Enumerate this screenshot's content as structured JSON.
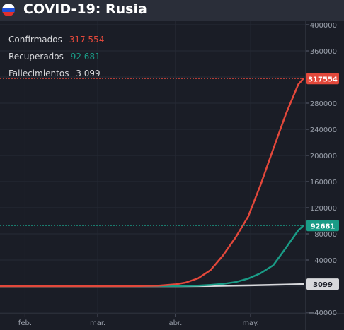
{
  "header": {
    "title": "COVID-19: Rusia",
    "flag_icon": "russia-flag-icon"
  },
  "legend": [
    {
      "label": "Confirmados",
      "value": "317 554",
      "color": "#e3483b"
    },
    {
      "label": "Recuperados",
      "value": "92 681",
      "color": "#1a9b86"
    },
    {
      "label": "Fallecimientos",
      "value": "3 099",
      "color": "#d8d9dc"
    }
  ],
  "colors": {
    "background": "#1a1d26",
    "grid": "#262a35",
    "axis_text": "#9aa0ab",
    "confirmed": "#e3483b",
    "recovered": "#1a9b86",
    "deaths": "#d8d9dc"
  },
  "chart_data": {
    "type": "line",
    "title": "COVID-19: Rusia",
    "xlabel": "",
    "ylabel": "",
    "grid": true,
    "legend_position": "top-left",
    "x_tick_labels": [
      "feb.",
      "mar.",
      "abr.",
      "may."
    ],
    "x_tick_dates": [
      "2020-02-01",
      "2020-03-01",
      "2020-04-01",
      "2020-05-01"
    ],
    "xlim": [
      "2020-01-22",
      "2020-05-23"
    ],
    "ylim": [
      -40000,
      400000
    ],
    "y_ticks": [
      -40000,
      0,
      40000,
      80000,
      120000,
      160000,
      200000,
      240000,
      280000,
      320000,
      360000,
      400000
    ],
    "y_tick_labels": [
      "−40000",
      "0",
      "40000",
      "80000",
      "120000",
      "160000",
      "200000",
      "240000",
      "280000",
      "320000",
      "360000",
      "400000"
    ],
    "series": [
      {
        "name": "Confirmados",
        "color": "#e3483b",
        "last_value_label": "317554",
        "points": [
          [
            "2020-01-22",
            0
          ],
          [
            "2020-03-01",
            0
          ],
          [
            "2020-03-15",
            60
          ],
          [
            "2020-03-25",
            658
          ],
          [
            "2020-04-01",
            2777
          ],
          [
            "2020-04-05",
            5389
          ],
          [
            "2020-04-10",
            11917
          ],
          [
            "2020-04-15",
            24490
          ],
          [
            "2020-04-20",
            47121
          ],
          [
            "2020-04-25",
            74588
          ],
          [
            "2020-04-30",
            106498
          ],
          [
            "2020-05-05",
            155370
          ],
          [
            "2020-05-10",
            209688
          ],
          [
            "2020-05-15",
            262843
          ],
          [
            "2020-05-20",
            308705
          ],
          [
            "2020-05-22",
            317554
          ]
        ]
      },
      {
        "name": "Recuperados",
        "color": "#1a9b86",
        "last_value_label": "92681",
        "points": [
          [
            "2020-01-22",
            0
          ],
          [
            "2020-04-01",
            190
          ],
          [
            "2020-04-10",
            795
          ],
          [
            "2020-04-15",
            1986
          ],
          [
            "2020-04-20",
            3446
          ],
          [
            "2020-04-25",
            6217
          ],
          [
            "2020-04-30",
            11619
          ],
          [
            "2020-05-05",
            19865
          ],
          [
            "2020-05-10",
            32000
          ],
          [
            "2020-05-15",
            58226
          ],
          [
            "2020-05-20",
            85392
          ],
          [
            "2020-05-22",
            92681
          ]
        ]
      },
      {
        "name": "Fallecimientos",
        "color": "#d8d9dc",
        "last_value_label": "3099",
        "points": [
          [
            "2020-01-22",
            0
          ],
          [
            "2020-04-01",
            22
          ],
          [
            "2020-04-15",
            198
          ],
          [
            "2020-05-01",
            1169
          ],
          [
            "2020-05-15",
            2418
          ],
          [
            "2020-05-22",
            3099
          ]
        ]
      }
    ]
  }
}
